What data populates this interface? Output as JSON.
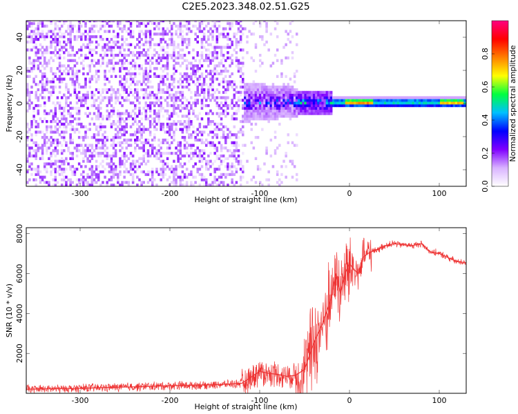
{
  "title": "C2E5.2023.348.02.51.G25",
  "chart_data": [
    {
      "type": "heatmap",
      "xlabel": "Height of straight line (km)",
      "ylabel": "Frequency (Hz)",
      "xlim": [
        -360,
        130
      ],
      "ylim": [
        -50,
        50
      ],
      "xticks": [
        -300,
        -200,
        -100,
        0,
        100
      ],
      "yticks": [
        -40,
        -20,
        0,
        20,
        40
      ],
      "grid": false,
      "structure": "scattered low-amplitude noise spread over all frequencies below about -120 km; beyond about -20 km a narrow band around 0 Hz with strongest amplitude near 0 to +20 km and between +100 and +125 km",
      "colorbar": {
        "label": "Normalized spectral amplitude",
        "range": [
          0.0,
          1.0
        ],
        "ticks": [
          "0.0",
          "0.2",
          "0.4",
          "0.6",
          "0.8"
        ],
        "colormap": [
          "#ffffff",
          "#d9b3ff",
          "#8000ff",
          "#0000ff",
          "#00c0ff",
          "#00ff40",
          "#ffff00",
          "#ff8000",
          "#ff0000",
          "#ff0080"
        ]
      }
    },
    {
      "type": "line",
      "xlabel": "Height of straight line (km)",
      "ylabel": "SNR (10 * v/v)",
      "xlim": [
        -360,
        130
      ],
      "ylim": [
        0,
        8300
      ],
      "xticks": [
        -300,
        -200,
        -100,
        0,
        100
      ],
      "yticks": [
        2000,
        4000,
        6000,
        8000
      ],
      "grid": false,
      "color": "#ee3333",
      "series": [
        {
          "x": [
            -360,
            -340,
            -320,
            -300,
            -280,
            -260,
            -240,
            -220,
            -200,
            -180,
            -160,
            -140,
            -120,
            -110,
            -100,
            -90,
            -80,
            -70,
            -60,
            -50,
            -40,
            -30,
            -20,
            -15,
            -10,
            -5,
            0,
            5,
            10,
            15,
            20,
            30,
            40,
            50,
            60,
            70,
            80,
            90,
            100,
            110,
            120,
            130
          ],
          "values": [
            200,
            220,
            230,
            250,
            280,
            300,
            320,
            350,
            380,
            400,
            420,
            450,
            500,
            800,
            1100,
            1000,
            950,
            850,
            900,
            1200,
            2500,
            3500,
            4800,
            6000,
            5000,
            6000,
            6500,
            6200,
            6000,
            6800,
            7000,
            7200,
            7400,
            7500,
            7450,
            7400,
            7500,
            7100,
            7000,
            6800,
            6600,
            6550
          ]
        }
      ]
    }
  ]
}
